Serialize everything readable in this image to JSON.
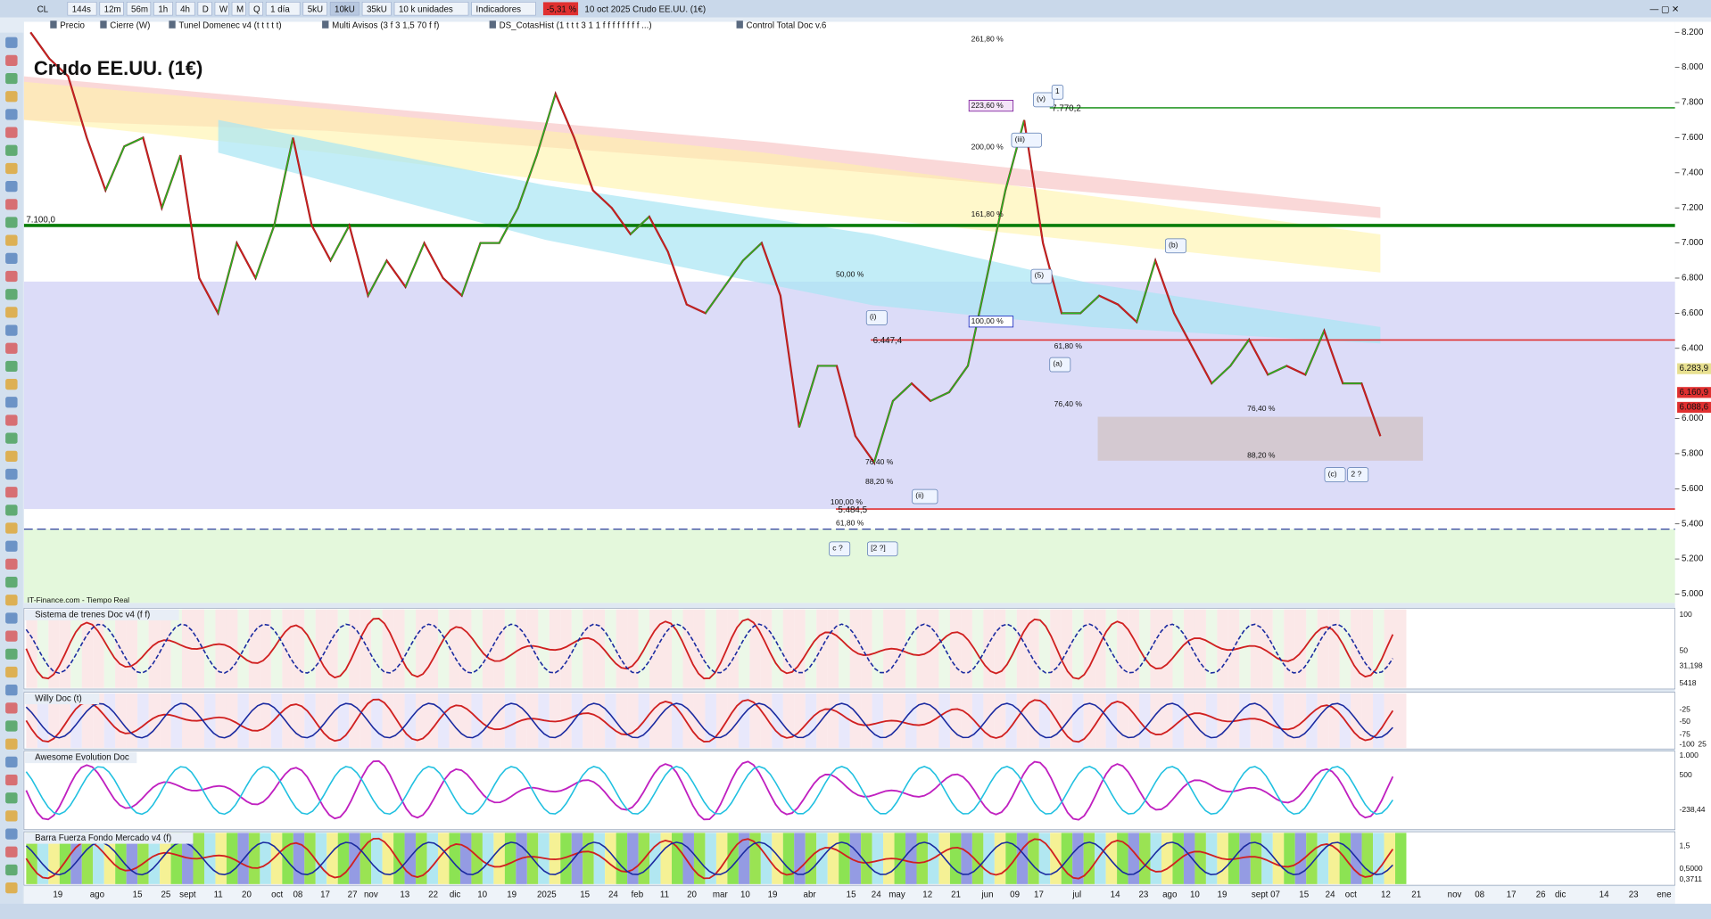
{
  "toolbar": {
    "symbol": "CL",
    "items": [
      "144s",
      "12m",
      "56m",
      "1h",
      "4h",
      "D",
      "W",
      "M",
      "Q",
      "1 día",
      "5kU",
      "10kU",
      "35kU",
      "10 k unidades",
      "Indicadores"
    ],
    "change": "-5,31 %",
    "caption": "10 oct 2025 Crudo EE.UU. (1€)"
  },
  "indicators_bar": [
    "Precio",
    "Cierre (W)",
    "Tunel Domenec v4 (t t t t t)",
    "Multi Avisos (3 f 3 1,5 70 f f)",
    "DS_CotasHist (1 t t t 3 1 1 f f f f f f f f ...)",
    "Control Total Doc v.6"
  ],
  "chart_data": {
    "type": "line",
    "title": "Crudo EE.UU. (1€)",
    "source": "IT-Finance.com - Tiempo Real",
    "ylim": [
      4.95,
      8.26
    ],
    "yticks": [
      {
        "value": 8.2,
        "label": "8.200"
      },
      {
        "value": 8.0,
        "label": "8.000"
      },
      {
        "value": 7.8,
        "label": "7.800"
      },
      {
        "value": 7.6,
        "label": "7.600"
      },
      {
        "value": 7.4,
        "label": "7.400"
      },
      {
        "value": 7.2,
        "label": "7.200"
      },
      {
        "value": 7.0,
        "label": "7.000"
      },
      {
        "value": 6.8,
        "label": "6.800"
      },
      {
        "value": 6.6,
        "label": "6.600"
      },
      {
        "value": 6.4,
        "label": "6.400"
      },
      {
        "value": 6.0,
        "label": "6.000"
      },
      {
        "value": 5.8,
        "label": "5.800"
      },
      {
        "value": 5.6,
        "label": "5.600"
      },
      {
        "value": 5.4,
        "label": "5.400"
      },
      {
        "value": 5.2,
        "label": "5.200"
      },
      {
        "value": 5.0,
        "label": "5.000"
      }
    ],
    "price_tags": [
      {
        "value": 6.2839,
        "label": "6.283,9",
        "color": "#e8e090"
      },
      {
        "value": 6.1609,
        "label": "6.160,9",
        "color": "#e03030"
      },
      {
        "value": 6.0886,
        "label": "6.088,6",
        "color": "#e03030"
      }
    ],
    "levels": [
      {
        "value": 7.1,
        "label": "7.100,0",
        "color": "#0a7d0a"
      },
      {
        "value": 7.7702,
        "label": "7.770,2",
        "color": "#2a9a2a"
      },
      {
        "value": 6.4474,
        "label": "6.447,4",
        "color": "#e03030"
      },
      {
        "value": 5.4845,
        "label": "5.484,5",
        "color": "#e03030"
      }
    ],
    "series": [
      {
        "name": "Precio",
        "color": "#8b1a1a",
        "values": [
          8.2,
          8.05,
          7.95,
          7.6,
          7.3,
          7.55,
          7.6,
          7.2,
          7.5,
          6.8,
          6.6,
          7.0,
          6.8,
          7.1,
          7.6,
          7.1,
          6.9,
          7.1,
          6.7,
          6.9,
          6.75,
          7.0,
          6.8,
          6.7,
          7.0,
          7.0,
          7.2,
          7.5,
          7.85,
          7.6,
          7.3,
          7.2,
          7.05,
          7.15,
          6.95,
          6.65,
          6.6,
          6.75,
          6.9,
          7.0,
          6.7,
          5.95,
          6.3,
          6.3,
          5.9,
          5.75,
          6.1,
          6.2,
          6.1,
          6.15,
          6.3,
          6.8,
          7.3,
          7.7,
          7.0,
          6.6,
          6.6,
          6.7,
          6.65,
          6.55,
          6.9,
          6.6,
          6.4,
          6.2,
          6.3,
          6.45,
          6.25,
          6.3,
          6.25,
          6.5,
          6.2,
          6.2,
          5.9
        ]
      }
    ],
    "annotations": [
      "261,80 %",
      "223,60 %",
      "200,00 %",
      "161,80 %",
      "100,00 %",
      "50,00 %",
      "61,80 %",
      "76,40 %",
      "88,20 %",
      "100,00 %",
      "61,80 %",
      "76,40 %",
      "76,40 %",
      "88,20 %",
      "(v)",
      "1",
      "(iii)",
      "(i)",
      "(ii)",
      "(a)",
      "(b)",
      "(c)",
      "2 ?",
      "c ?",
      "[2 ?]",
      "(5)"
    ],
    "x_labels": [
      "19",
      "ago",
      "15",
      "25",
      "sept",
      "11",
      "20",
      "oct",
      "08",
      "17",
      "27",
      "nov",
      "13",
      "22",
      "dic",
      "10",
      "19",
      "2025",
      "15",
      "24",
      "feb",
      "11",
      "20",
      "mar",
      "10",
      "19",
      "abr",
      "15",
      "24",
      "may",
      "12",
      "21",
      "jun",
      "09",
      "17",
      "jul",
      "14",
      "23",
      "ago",
      "10",
      "19",
      "sept 07",
      "15",
      "24",
      "oct",
      "12",
      "21",
      "nov",
      "08",
      "17",
      "26",
      "dic",
      "14",
      "23",
      "ene"
    ]
  },
  "panels": [
    {
      "title": "Sistema de trenes Doc v4 (f f)",
      "labels": [
        "100",
        "50",
        "31,198",
        "5418"
      ]
    },
    {
      "title": "Willy Doc (t)",
      "labels": [
        "-25",
        "-50",
        "-75",
        "-100",
        "25"
      ]
    },
    {
      "title": "Awesome Evolution Doc",
      "labels": [
        "1.000",
        "500",
        "-238,44"
      ]
    },
    {
      "title": "Barra Fuerza Fondo Mercado v4 (f)",
      "labels": [
        "1,5",
        "0,5000",
        "0,3711"
      ]
    }
  ]
}
